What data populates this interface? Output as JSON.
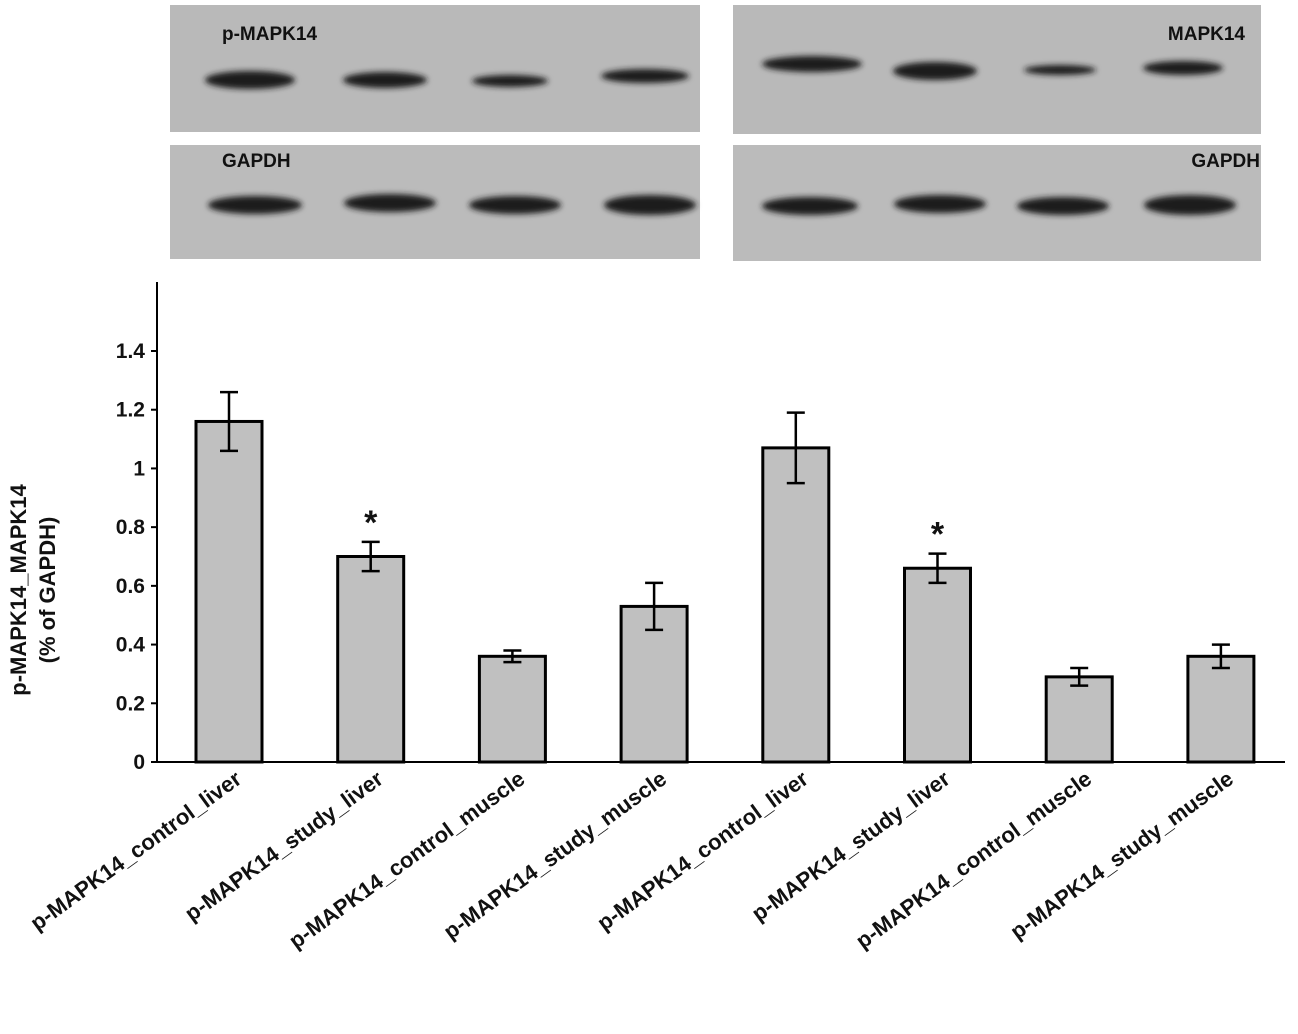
{
  "blots": {
    "top_left_label": "p-MAPK14",
    "top_right_label": "MAPK14",
    "bottom_left_label": "GAPDH",
    "bottom_right_label": "GAPDH"
  },
  "colors": {
    "bar_fill": "#c0c0c0",
    "bar_stroke": "#000000",
    "blot_bg": "#b9b9b9",
    "band": "#1a1a1a"
  },
  "chart_data": {
    "type": "bar",
    "title": "",
    "ylabel_line1": "p-MAPK14_MAPK14",
    "ylabel_line2": "(% of GAPDH)",
    "xlabel": "",
    "ylim": [
      0,
      1.4
    ],
    "yticks": [
      0,
      0.2,
      0.4,
      0.6,
      0.8,
      1,
      1.2,
      1.4
    ],
    "ytick_labels": [
      "0",
      "0.2",
      "0.4",
      "0.6",
      "0.8",
      "1",
      "1.2",
      "1.4"
    ],
    "grid": false,
    "categories": [
      "p-MAPK14_control_liver",
      "p-MAPK14_study_liver",
      "p-MAPK14_control_muscle",
      "p-MAPK14_study_muscle",
      "p-MAPK14_control_liver",
      "p-MAPK14_study_liver",
      "p-MAPK14_control_muscle",
      "p-MAPK14_study_muscle"
    ],
    "values": [
      1.16,
      0.7,
      0.36,
      0.53,
      1.07,
      0.66,
      0.29,
      0.36
    ],
    "error": [
      0.1,
      0.05,
      0.02,
      0.08,
      0.12,
      0.05,
      0.03,
      0.04
    ],
    "annotations": [
      {
        "category_index": 1,
        "text": "*"
      },
      {
        "category_index": 5,
        "text": "*"
      }
    ]
  }
}
